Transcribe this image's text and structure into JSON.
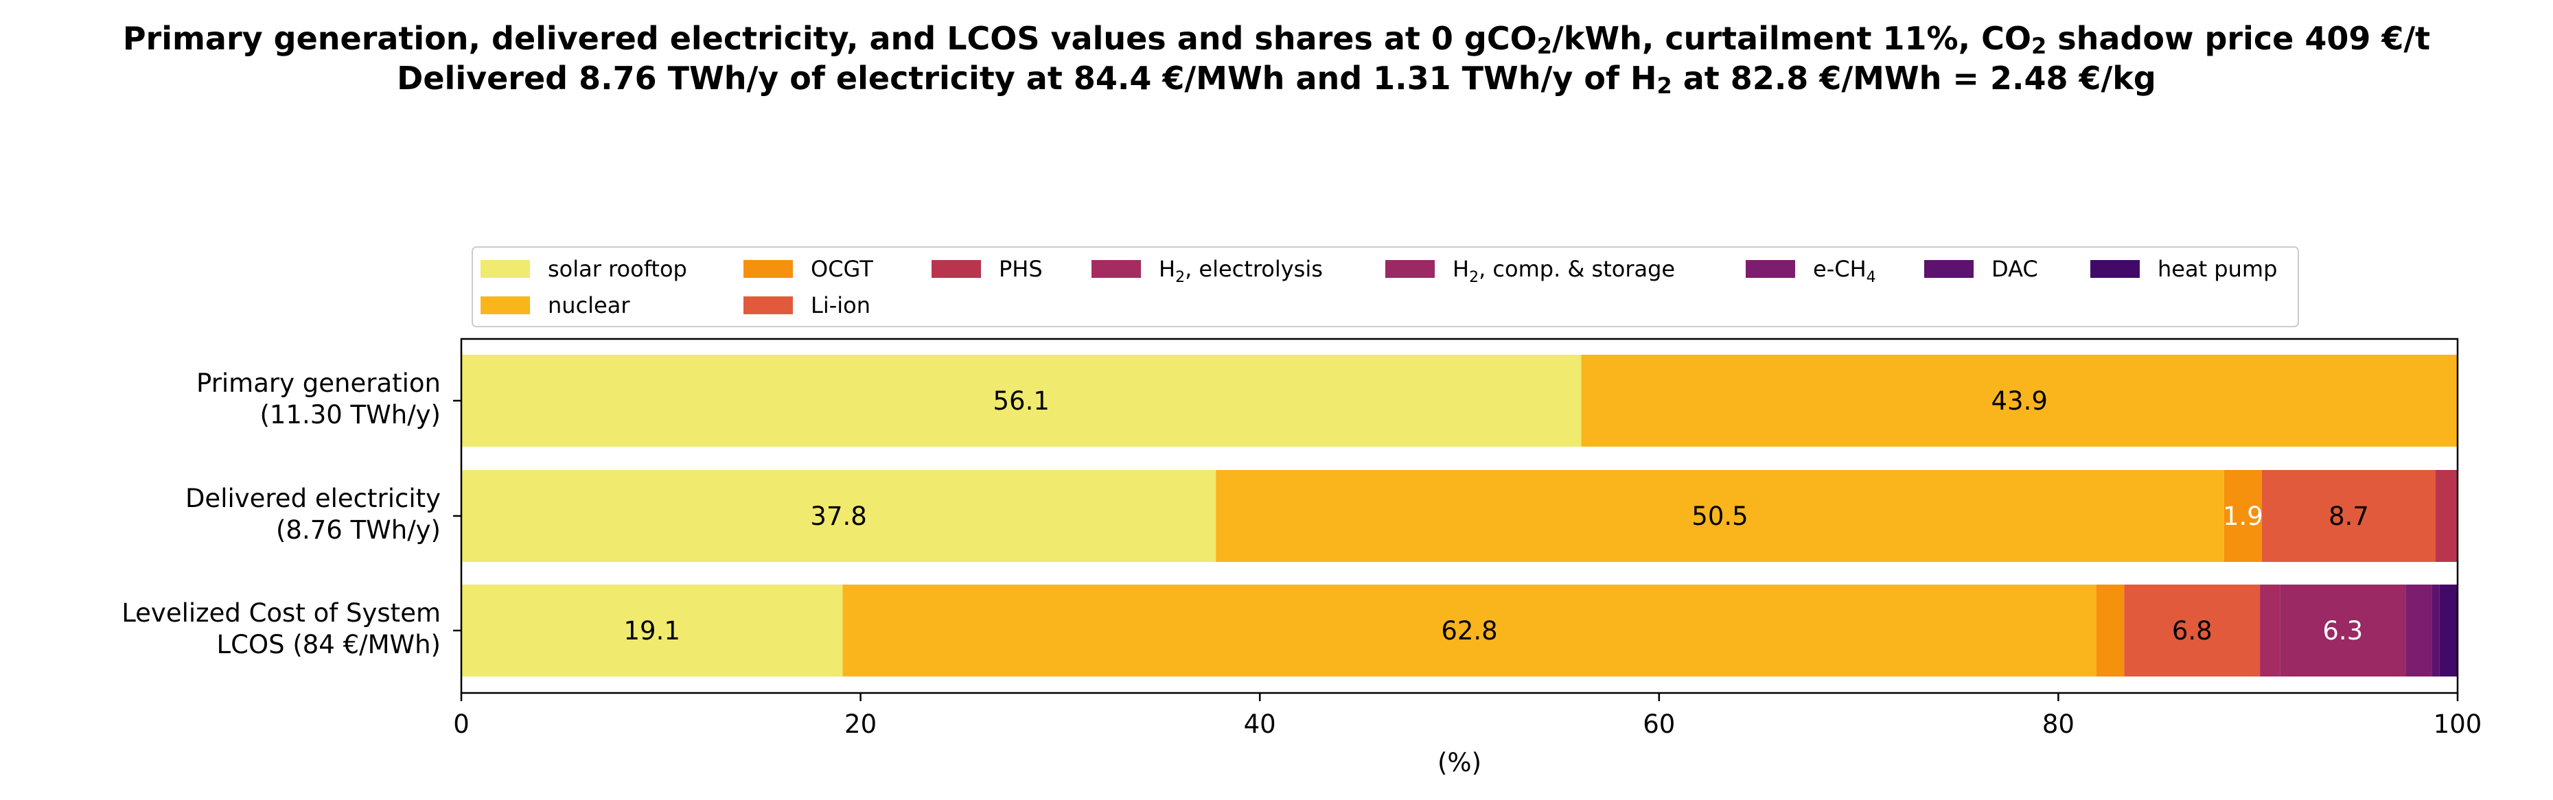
{
  "title": {
    "line1": [
      "Primary generation, delivered electricity, and LCOS values and shares at 0 gCO",
      "2",
      "/kWh, curtailment 11%, CO",
      "2",
      " shadow price 409 €/t"
    ],
    "line2": [
      "Delivered 8.76 TWh/y of electricity at 84.4 €/MWh and 1.31 TWh/y of H",
      "2",
      " at 82.8 €/MWh = 2.48 €/kg"
    ]
  },
  "chart_data": {
    "type": "bar",
    "orientation": "horizontal-stacked",
    "xlabel": "(%)",
    "xlim": [
      0,
      100
    ],
    "xticks": [
      0,
      20,
      40,
      60,
      80,
      100
    ],
    "legend_placement": "top-center",
    "categories": [
      [
        "Primary generation",
        "(11.30 TWh/y)"
      ],
      [
        "Delivered electricity",
        "(8.76 TWh/y)"
      ],
      [
        "Levelized Cost of System",
        "LCOS  (84 €/MWh)"
      ]
    ],
    "series": [
      {
        "name": "solar rooftop",
        "name_parts": [
          "solar rooftop"
        ],
        "color": "#f0ea6e",
        "values": [
          56.1,
          37.8,
          19.1
        ],
        "labels": [
          "56.1",
          "37.8",
          "19.1"
        ],
        "label_colors": [
          "#000000",
          "#000000",
          "#000000"
        ]
      },
      {
        "name": "nuclear",
        "name_parts": [
          "nuclear"
        ],
        "color": "#fab51d",
        "values": [
          43.9,
          50.5,
          62.8
        ],
        "labels": [
          "43.9",
          "50.5",
          "62.8"
        ],
        "label_colors": [
          "#000000",
          "#000000",
          "#000000"
        ]
      },
      {
        "name": "OCGT",
        "name_parts": [
          "OCGT"
        ],
        "color": "#f6910d",
        "values": [
          0,
          1.9,
          1.4
        ],
        "labels": [
          "",
          "1.9",
          ""
        ],
        "label_colors": [
          "#000000",
          "#ffffff",
          "#000000"
        ]
      },
      {
        "name": "Li-ion",
        "name_parts": [
          "Li-ion"
        ],
        "color": "#e25a3c",
        "values": [
          0,
          8.7,
          6.8
        ],
        "labels": [
          "",
          "8.7",
          "6.8"
        ],
        "label_colors": [
          "#000000",
          "#000000",
          "#000000"
        ]
      },
      {
        "name": "PHS",
        "name_parts": [
          "PHS"
        ],
        "color": "#b8354d",
        "values": [
          0,
          1.1,
          0
        ],
        "labels": [
          "",
          "",
          ""
        ],
        "label_colors": [
          "#000000",
          "#000000",
          "#000000"
        ]
      },
      {
        "name": "H2, electrolysis",
        "name_parts": [
          "H",
          "2",
          ", electrolysis"
        ],
        "color": "#a52c60",
        "values": [
          0,
          0,
          1.0
        ],
        "labels": [
          "",
          "",
          ""
        ],
        "label_colors": [
          "#000000",
          "#000000",
          "#000000"
        ]
      },
      {
        "name": "H2, comp. & storage",
        "name_parts": [
          "H",
          "2",
          ", comp. & storage"
        ],
        "color": "#9b2964",
        "values": [
          0,
          0,
          6.3
        ],
        "labels": [
          "",
          "",
          "6.3"
        ],
        "label_colors": [
          "#ffffff",
          "#ffffff",
          "#ffffff"
        ]
      },
      {
        "name": "e-CH4",
        "name_parts": [
          "e-CH",
          "4"
        ],
        "color": "#7c1d6f",
        "values": [
          0,
          0,
          1.3
        ],
        "labels": [
          "",
          "",
          ""
        ],
        "label_colors": [
          "#ffffff",
          "#ffffff",
          "#ffffff"
        ]
      },
      {
        "name": "DAC",
        "name_parts": [
          "DAC"
        ],
        "color": "#5c126e",
        "values": [
          0,
          0,
          0.4
        ],
        "labels": [
          "",
          "",
          ""
        ],
        "label_colors": [
          "#ffffff",
          "#ffffff",
          "#ffffff"
        ]
      },
      {
        "name": "heat pump",
        "name_parts": [
          "heat pump"
        ],
        "color": "#420a68",
        "values": [
          0,
          0,
          0.9
        ],
        "labels": [
          "",
          "",
          ""
        ],
        "label_colors": [
          "#ffffff",
          "#ffffff",
          "#ffffff"
        ]
      }
    ]
  }
}
